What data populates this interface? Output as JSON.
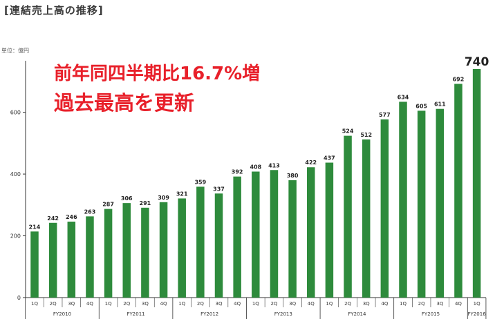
{
  "header": {
    "title": "[連結売上高の推移]",
    "unit": "単位：億円"
  },
  "headline": {
    "line1": "前年同四半期比16.7%増",
    "line2": "過去最高を更新"
  },
  "colors": {
    "bar": "#2e8b3c",
    "headline": "#e8202a",
    "axis": "#333333"
  },
  "chart_data": {
    "type": "bar",
    "title": "[連結売上高の推移]",
    "ylabel": "単位：億円",
    "ylim": [
      0,
      740
    ],
    "yticks": [
      0,
      200,
      400,
      600
    ],
    "categories": [
      "1Q",
      "2Q",
      "3Q",
      "4Q",
      "1Q",
      "2Q",
      "3Q",
      "4Q",
      "1Q",
      "2Q",
      "3Q",
      "4Q",
      "1Q",
      "2Q",
      "3Q",
      "4Q",
      "1Q",
      "2Q",
      "3Q",
      "4Q",
      "1Q",
      "2Q",
      "3Q",
      "4Q",
      "1Q"
    ],
    "values": [
      214,
      242,
      246,
      263,
      287,
      306,
      291,
      309,
      321,
      359,
      337,
      392,
      408,
      413,
      380,
      422,
      437,
      524,
      512,
      577,
      634,
      605,
      611,
      692,
      740
    ],
    "fiscal_years": [
      "FY2010",
      "FY2011",
      "FY2012",
      "FY2013",
      "FY2014",
      "FY2015",
      "FY2016"
    ],
    "quarters_per_year": [
      4,
      4,
      4,
      4,
      4,
      4,
      1
    ],
    "highlight_index": 24
  }
}
